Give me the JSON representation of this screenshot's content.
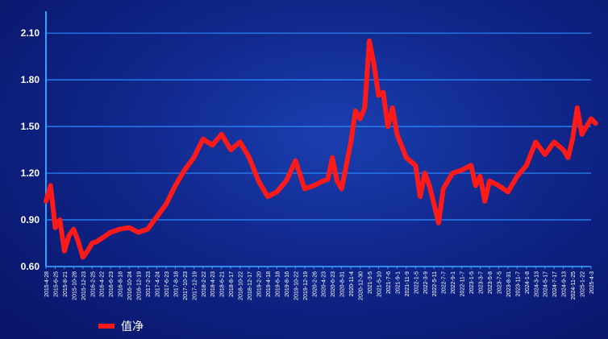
{
  "chart_data": {
    "type": "line",
    "yticks": [
      "0.60",
      "0.90",
      "1.20",
      "1.50",
      "1.80",
      "2.10"
    ],
    "ylim": [
      0.6,
      2.22
    ],
    "grid": true,
    "legend": {
      "position": "bottom-left",
      "label": "值净"
    },
    "colors": {
      "line": "#ff1a1a",
      "grid": "#2a8cff",
      "axis": "#3aa0ff",
      "text": "#ffffff"
    },
    "xticks": [
      "2015-4-28",
      "2015-6-25",
      "2015-8-21",
      "2015-10-28",
      "2015-12-23",
      "2016-2-25",
      "2016-4-22",
      "2016-6-23",
      "2016-8-18",
      "2016-10-24",
      "2016-12-19",
      "2017-2-23",
      "2017-4-24",
      "2017-6-23",
      "2017-8-18",
      "2017-10-23",
      "2017-12-19",
      "2018-2-22",
      "2018-4-23",
      "2018-6-21",
      "2018-8-17",
      "2018-10-22",
      "2018-12-17",
      "2019-2-20",
      "2019-4-18",
      "2019-6-18",
      "2019-8-16",
      "2019-10-22",
      "2019-12-19",
      "2020-2-26",
      "2020-4-23",
      "2020-6-23",
      "2020-8-31",
      "2020-11-4",
      "2020-12-30",
      "2021-3-5",
      "2021-5-10",
      "2021-7-6",
      "2021-9-1",
      "2021-11-9",
      "2022-1-5",
      "2022-3-9",
      "2022-5-11",
      "2022-7-7",
      "2022-9-1",
      "2022-11-7",
      "2023-1-5",
      "2023-3-7",
      "2023-5-8",
      "2023-7-5",
      "2023-8-31",
      "2023-11-7",
      "2024-1-8",
      "2024-3-13",
      "2024-5-17",
      "2024-7-17",
      "2024-9-13",
      "2024-11-25",
      "2025-1-22",
      "2025-4-3"
    ],
    "series": [
      {
        "name": "值净",
        "x": [
          0,
          0.5,
          1,
          1.5,
          2,
          2.5,
          3,
          3.5,
          4,
          4.5,
          5,
          5.5,
          6,
          6.5,
          7,
          7.5,
          8,
          9,
          10,
          11,
          12,
          13,
          14,
          15,
          16,
          17,
          18,
          19,
          20,
          21,
          22,
          23,
          24,
          25,
          26,
          27,
          28,
          29,
          30,
          30.5,
          31,
          31.5,
          32,
          32.5,
          33,
          33.5,
          34,
          34.5,
          35,
          35.5,
          36,
          36.5,
          37,
          37.5,
          38,
          39,
          40,
          40.5,
          41,
          41.5,
          42,
          42.5,
          43,
          44,
          45,
          46,
          46.5,
          47,
          47.5,
          48,
          49,
          50,
          51,
          52,
          53,
          54,
          55,
          56,
          56.5,
          57,
          57.5,
          58,
          59,
          59.5
        ],
        "y": [
          1.02,
          1.12,
          0.85,
          0.9,
          0.7,
          0.8,
          0.84,
          0.76,
          0.66,
          0.7,
          0.75,
          0.76,
          0.78,
          0.8,
          0.82,
          0.83,
          0.84,
          0.85,
          0.82,
          0.84,
          0.92,
          1.0,
          1.12,
          1.22,
          1.3,
          1.42,
          1.38,
          1.45,
          1.35,
          1.4,
          1.3,
          1.15,
          1.05,
          1.08,
          1.15,
          1.28,
          1.1,
          1.12,
          1.15,
          1.16,
          1.3,
          1.15,
          1.1,
          1.25,
          1.4,
          1.6,
          1.55,
          1.62,
          2.05,
          1.9,
          1.7,
          1.72,
          1.5,
          1.62,
          1.45,
          1.3,
          1.25,
          1.05,
          1.2,
          1.12,
          1.0,
          0.88,
          1.1,
          1.2,
          1.22,
          1.25,
          1.12,
          1.18,
          1.02,
          1.15,
          1.12,
          1.08,
          1.18,
          1.25,
          1.4,
          1.32,
          1.4,
          1.35,
          1.3,
          1.42,
          1.62,
          1.45,
          1.55,
          1.52
        ]
      }
    ]
  }
}
